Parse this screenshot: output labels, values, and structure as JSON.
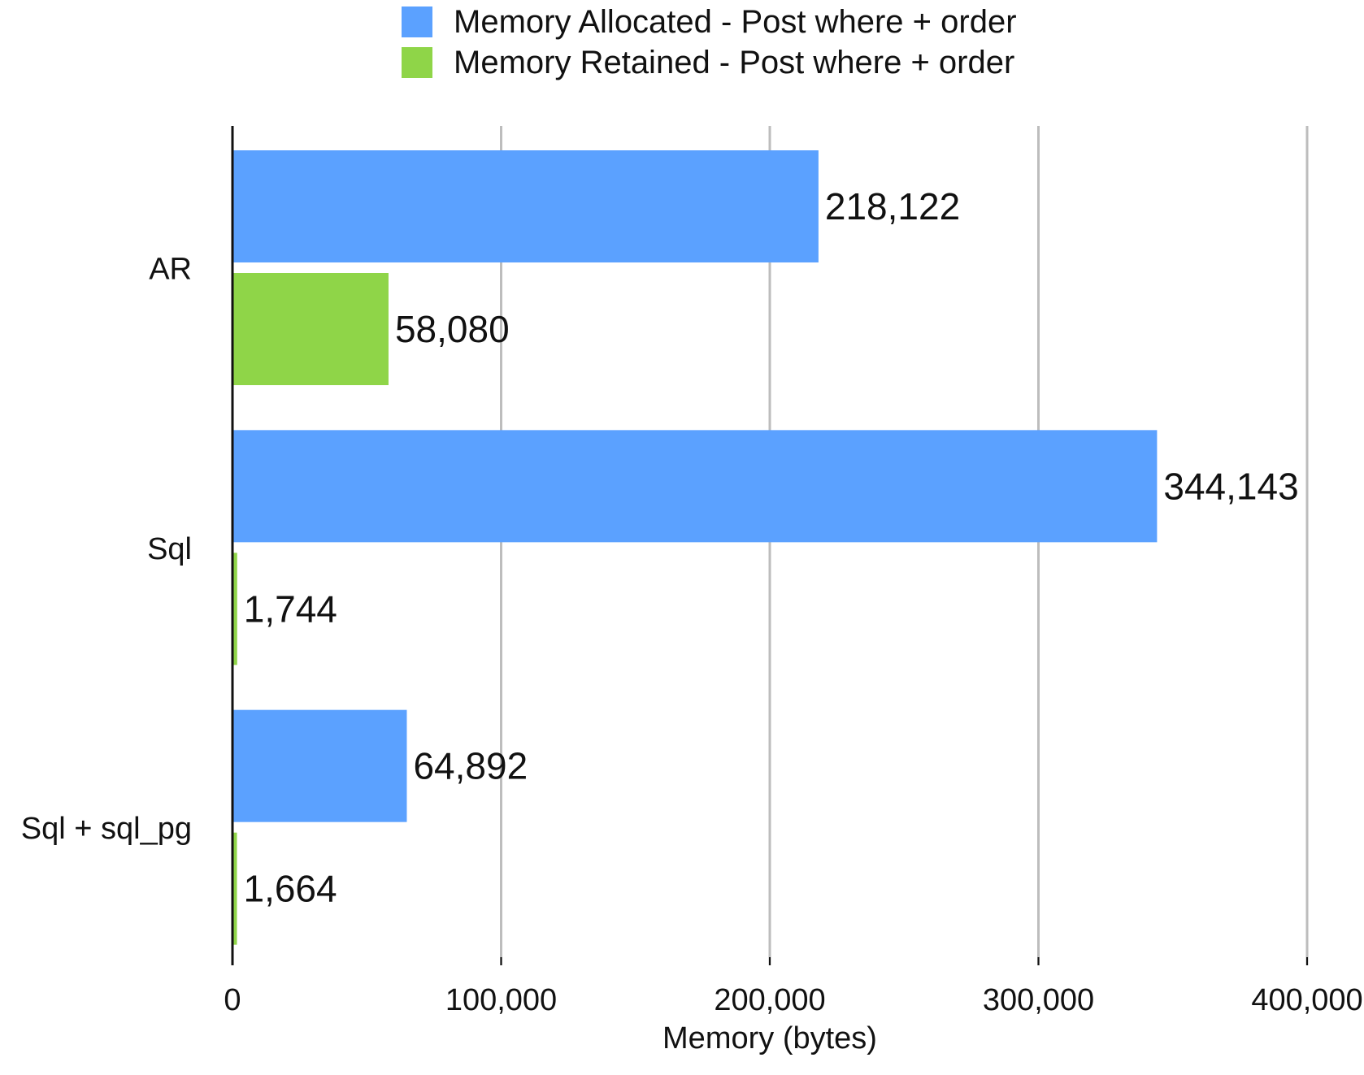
{
  "chart_data": {
    "type": "bar",
    "orientation": "horizontal",
    "title": "",
    "xlabel": "Memory (bytes)",
    "ylabel": "",
    "xlim": [
      0,
      400000
    ],
    "xticks": [
      0,
      100000,
      200000,
      300000,
      400000
    ],
    "xtick_labels": [
      "0",
      "100,000",
      "200,000",
      "300,000",
      "400,000"
    ],
    "grid": true,
    "legend_position": "top-center",
    "categories": [
      "AR",
      "Sql",
      "Sql + sql_pg"
    ],
    "series": [
      {
        "name": "Memory Allocated - Post where + order",
        "color": "#5ba1ff",
        "values": [
          218122,
          344143,
          64892
        ],
        "labels": [
          "218,122",
          "344,143",
          "64,892"
        ]
      },
      {
        "name": "Memory Retained - Post where + order",
        "color": "#8fd548",
        "values": [
          58080,
          1744,
          1664
        ],
        "labels": [
          "58,080",
          "1,744",
          "1,664"
        ]
      }
    ]
  }
}
